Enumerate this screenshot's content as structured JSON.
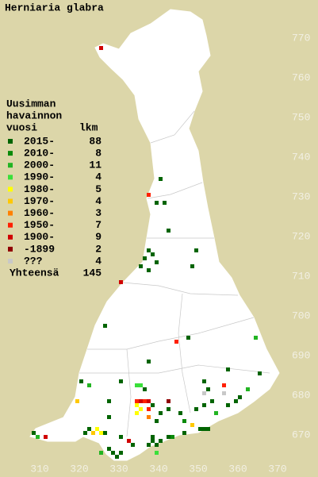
{
  "title": "Herniaria glabra",
  "legend": {
    "heading": [
      "Uusimman",
      "havainnon",
      "vuosi"
    ],
    "count_header": "lkm",
    "items": [
      {
        "label": "2015-",
        "color": "#006400",
        "count": 88
      },
      {
        "label": "2010-",
        "color": "#0a8a0a",
        "count": 8
      },
      {
        "label": "2000-",
        "color": "#22b422",
        "count": 11
      },
      {
        "label": "1990-",
        "color": "#3ae03a",
        "count": 4
      },
      {
        "label": "1980-",
        "color": "#ffff00",
        "count": 5
      },
      {
        "label": "1970-",
        "color": "#ffc800",
        "count": 4
      },
      {
        "label": "1960-",
        "color": "#ff8000",
        "count": 3
      },
      {
        "label": "1950-",
        "color": "#ff2000",
        "count": 7
      },
      {
        "label": "1900-",
        "color": "#d00000",
        "count": 9
      },
      {
        "label": "-1899",
        "color": "#900000",
        "count": 2
      },
      {
        "label": "???",
        "color": "#c8c8c8",
        "count": 4
      }
    ],
    "total_label": "Yhteensä",
    "total": 145
  },
  "axes": {
    "north_labels": [
      770,
      760,
      750,
      740,
      730,
      720,
      710,
      700,
      690,
      680,
      670
    ],
    "east_labels": [
      310,
      320,
      330,
      340,
      350,
      360,
      370
    ]
  },
  "records": [
    {
      "e": 325,
      "n": 768,
      "c": 8
    },
    {
      "e": 340,
      "n": 735,
      "c": 0
    },
    {
      "e": 337,
      "n": 731,
      "c": 7
    },
    {
      "e": 339,
      "n": 729,
      "c": 0
    },
    {
      "e": 341,
      "n": 729,
      "c": 0
    },
    {
      "e": 342,
      "n": 722,
      "c": 0
    },
    {
      "e": 337,
      "n": 717,
      "c": 0
    },
    {
      "e": 336,
      "n": 715,
      "c": 0
    },
    {
      "e": 338,
      "n": 716,
      "c": 0
    },
    {
      "e": 339,
      "n": 714,
      "c": 0
    },
    {
      "e": 335,
      "n": 713,
      "c": 0
    },
    {
      "e": 337,
      "n": 712,
      "c": 0
    },
    {
      "e": 349,
      "n": 717,
      "c": 0
    },
    {
      "e": 348,
      "n": 713,
      "c": 0
    },
    {
      "e": 330,
      "n": 709,
      "c": 8
    },
    {
      "e": 326,
      "n": 698,
      "c": 0
    },
    {
      "e": 344,
      "n": 694,
      "c": 7
    },
    {
      "e": 347,
      "n": 695,
      "c": 0
    },
    {
      "e": 364,
      "n": 695,
      "c": 2
    },
    {
      "e": 337,
      "n": 689,
      "c": 0
    },
    {
      "e": 357,
      "n": 687,
      "c": 0
    },
    {
      "e": 365,
      "n": 686,
      "c": 0
    },
    {
      "e": 320,
      "n": 684,
      "c": 0
    },
    {
      "e": 322,
      "n": 683,
      "c": 2
    },
    {
      "e": 330,
      "n": 684,
      "c": 0
    },
    {
      "e": 334,
      "n": 683,
      "c": 3
    },
    {
      "e": 335,
      "n": 683,
      "c": 3
    },
    {
      "e": 336,
      "n": 682,
      "c": 0
    },
    {
      "e": 351,
      "n": 684,
      "c": 0
    },
    {
      "e": 352,
      "n": 682,
      "c": 0
    },
    {
      "e": 356,
      "n": 683,
      "c": 7
    },
    {
      "e": 351,
      "n": 681,
      "c": 10
    },
    {
      "e": 356,
      "n": 681,
      "c": 10
    },
    {
      "e": 362,
      "n": 682,
      "c": 2
    },
    {
      "e": 319,
      "n": 679,
      "c": 5
    },
    {
      "e": 327,
      "n": 679,
      "c": 0
    },
    {
      "e": 334,
      "n": 679,
      "c": 7
    },
    {
      "e": 335,
      "n": 679,
      "c": 8
    },
    {
      "e": 336,
      "n": 679,
      "c": 7
    },
    {
      "e": 337,
      "n": 679,
      "c": 8
    },
    {
      "e": 334,
      "n": 678,
      "c": 4
    },
    {
      "e": 342,
      "n": 679,
      "c": 9
    },
    {
      "e": 335,
      "n": 677,
      "c": 4
    },
    {
      "e": 337,
      "n": 677,
      "c": 7
    },
    {
      "e": 338,
      "n": 678,
      "c": 0
    },
    {
      "e": 334,
      "n": 676,
      "c": 4
    },
    {
      "e": 340,
      "n": 676,
      "c": 0
    },
    {
      "e": 342,
      "n": 677,
      "c": 0
    },
    {
      "e": 345,
      "n": 676,
      "c": 0
    },
    {
      "e": 349,
      "n": 677,
      "c": 0
    },
    {
      "e": 351,
      "n": 678,
      "c": 0
    },
    {
      "e": 353,
      "n": 679,
      "c": 0
    },
    {
      "e": 354,
      "n": 676,
      "c": 2
    },
    {
      "e": 357,
      "n": 678,
      "c": 0
    },
    {
      "e": 359,
      "n": 679,
      "c": 0
    },
    {
      "e": 360,
      "n": 680,
      "c": 0
    },
    {
      "e": 327,
      "n": 675,
      "c": 0
    },
    {
      "e": 337,
      "n": 675,
      "c": 6
    },
    {
      "e": 339,
      "n": 674,
      "c": 0
    },
    {
      "e": 346,
      "n": 674,
      "c": 1
    },
    {
      "e": 348,
      "n": 673,
      "c": 5
    },
    {
      "e": 322,
      "n": 672,
      "c": 0
    },
    {
      "e": 323,
      "n": 671,
      "c": 5
    },
    {
      "e": 324,
      "n": 672,
      "c": 4
    },
    {
      "e": 325,
      "n": 671,
      "c": 4
    },
    {
      "e": 326,
      "n": 671,
      "c": 0
    },
    {
      "e": 321,
      "n": 671,
      "c": 0
    },
    {
      "e": 308,
      "n": 671,
      "c": 0
    },
    {
      "e": 309,
      "n": 670,
      "c": 2
    },
    {
      "e": 311,
      "n": 670,
      "c": 8
    },
    {
      "e": 330,
      "n": 670,
      "c": 0
    },
    {
      "e": 332,
      "n": 669,
      "c": 8
    },
    {
      "e": 338,
      "n": 670,
      "c": 0
    },
    {
      "e": 338,
      "n": 669,
      "c": 0
    },
    {
      "e": 339,
      "n": 668,
      "c": 0
    },
    {
      "e": 340,
      "n": 669,
      "c": 0
    },
    {
      "e": 337,
      "n": 668,
      "c": 0
    },
    {
      "e": 342,
      "n": 670,
      "c": 0
    },
    {
      "e": 343,
      "n": 670,
      "c": 1
    },
    {
      "e": 346,
      "n": 671,
      "c": 0
    },
    {
      "e": 350,
      "n": 672,
      "c": 0
    },
    {
      "e": 351,
      "n": 672,
      "c": 0
    },
    {
      "e": 352,
      "n": 672,
      "c": 0
    },
    {
      "e": 327,
      "n": 667,
      "c": 0
    },
    {
      "e": 328,
      "n": 666,
      "c": 0
    },
    {
      "e": 329,
      "n": 665,
      "c": 0
    },
    {
      "e": 330,
      "n": 666,
      "c": 0
    },
    {
      "e": 325,
      "n": 666,
      "c": 2
    },
    {
      "e": 339,
      "n": 666,
      "c": 3
    },
    {
      "e": 333,
      "n": 668,
      "c": 0
    }
  ]
}
